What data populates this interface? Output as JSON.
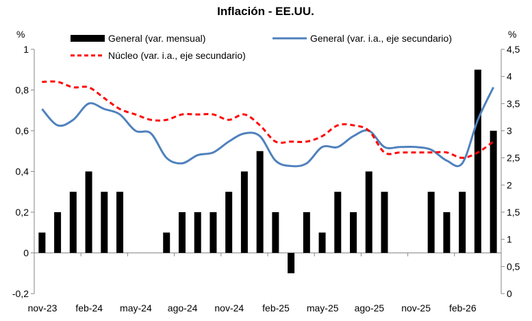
{
  "chart_data": {
    "type": "bar+line",
    "title": "Inflación - EE.UU.",
    "y_left": {
      "unit_label": "%",
      "min": -0.2,
      "max": 1,
      "ticks": [
        "-0,2",
        "0",
        "0,2",
        "0,4",
        "0,6",
        "0,8",
        "1"
      ]
    },
    "y_right": {
      "unit_label": "%",
      "min": 0,
      "max": 4.5,
      "ticks": [
        "0",
        "0,5",
        "1",
        "1,5",
        "2",
        "2,5",
        "3",
        "3,5",
        "4",
        "4,5"
      ]
    },
    "x_tick_labels": [
      "nov-23",
      "feb-24",
      "may-24",
      "ago-24",
      "nov-24",
      "feb-25",
      "may-25",
      "ago-25",
      "nov-25",
      "feb-26"
    ],
    "months": [
      "nov-23",
      "dic-23",
      "ene-24",
      "feb-24",
      "mar-24",
      "abr-24",
      "may-24",
      "jun-24",
      "jul-24",
      "ago-24",
      "sep-24",
      "oct-24",
      "nov-24",
      "dic-24",
      "ene-25",
      "feb-25",
      "mar-25",
      "abr-25",
      "may-25",
      "jun-25",
      "jul-25",
      "ago-25",
      "sep-25",
      "oct-25",
      "nov-25",
      "dic-25",
      "ene-26",
      "feb-26",
      "mar-26",
      "abr-26"
    ],
    "legend": {
      "bars": "General (var. mensual)",
      "line_general": "General (var. i.a., eje secundario)",
      "line_core": "Núcleo (var. i.a., eje secundario)"
    },
    "colors": {
      "bars": "#000000",
      "line_general": "#4f81bd",
      "line_core": "#ff0000"
    },
    "series": [
      {
        "name": "General (var. mensual)",
        "axis": "left",
        "kind": "bar",
        "values": [
          0.1,
          0.2,
          0.3,
          0.4,
          0.3,
          0.3,
          null,
          null,
          0.1,
          0.2,
          0.2,
          0.2,
          0.3,
          0.4,
          0.5,
          0.2,
          -0.1,
          0.2,
          0.1,
          0.3,
          0.2,
          0.4,
          0.3,
          null,
          null,
          0.3,
          0.2,
          0.3,
          0.9,
          0.6
        ]
      },
      {
        "name": "General (var. i.a., eje secundario)",
        "axis": "right",
        "kind": "line",
        "values": [
          3.4,
          3.1,
          3.2,
          3.5,
          3.4,
          3.3,
          3.0,
          2.95,
          2.5,
          2.4,
          2.55,
          2.6,
          2.8,
          2.95,
          2.9,
          2.45,
          2.35,
          2.4,
          2.7,
          2.7,
          2.9,
          3.0,
          2.7,
          2.7,
          2.7,
          2.65,
          2.45,
          2.4,
          3.2,
          3.8
        ]
      },
      {
        "name": "Núcleo (var. i.a., eje secundario)",
        "axis": "right",
        "kind": "line",
        "values": [
          3.9,
          3.9,
          3.8,
          3.8,
          3.6,
          3.4,
          3.3,
          3.2,
          3.2,
          3.3,
          3.3,
          3.3,
          3.2,
          3.3,
          3.1,
          2.8,
          2.8,
          2.8,
          2.9,
          3.1,
          3.1,
          3.0,
          2.6,
          2.6,
          2.6,
          2.6,
          2.6,
          2.5,
          2.6,
          2.8
        ]
      }
    ]
  }
}
